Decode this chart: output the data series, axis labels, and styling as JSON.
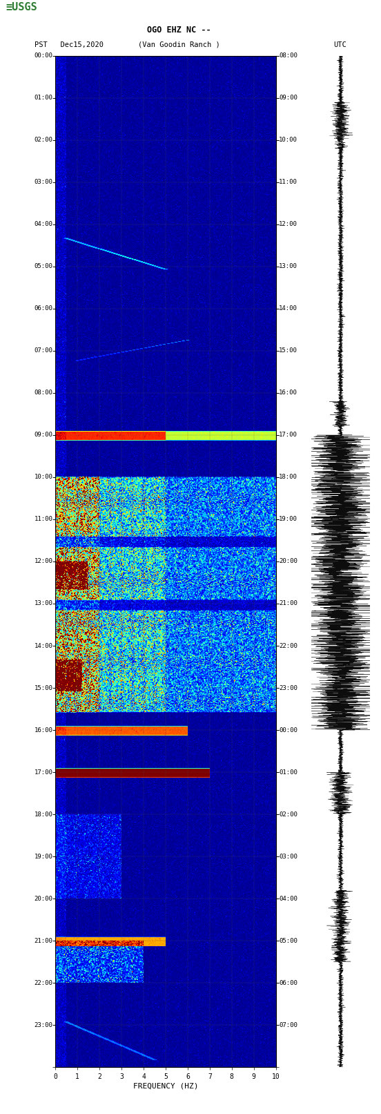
{
  "title_line1": "OGO EHZ NC --",
  "title_line2": "(Van Goodin Ranch )",
  "left_label": "PST   Dec15,2020",
  "right_label": "UTC",
  "xlabel": "FREQUENCY (HZ)",
  "x_ticks": [
    0,
    1,
    2,
    3,
    4,
    5,
    6,
    7,
    8,
    9,
    10
  ],
  "pst_labels": [
    "00:00",
    "01:00",
    "02:00",
    "03:00",
    "04:00",
    "05:00",
    "06:00",
    "07:00",
    "08:00",
    "09:00",
    "10:00",
    "11:00",
    "12:00",
    "13:00",
    "14:00",
    "15:00",
    "16:00",
    "17:00",
    "18:00",
    "19:00",
    "20:00",
    "21:00",
    "22:00",
    "23:00"
  ],
  "utc_labels": [
    "08:00",
    "09:00",
    "10:00",
    "11:00",
    "12:00",
    "13:00",
    "14:00",
    "15:00",
    "16:00",
    "17:00",
    "18:00",
    "19:00",
    "20:00",
    "21:00",
    "22:00",
    "23:00",
    "00:00",
    "01:00",
    "02:00",
    "03:00",
    "04:00",
    "05:00",
    "06:00",
    "07:00"
  ],
  "bg_color": "#000080",
  "freq_min": 0,
  "freq_max": 10,
  "time_hours": 24,
  "n_time": 1440,
  "n_freq": 300
}
